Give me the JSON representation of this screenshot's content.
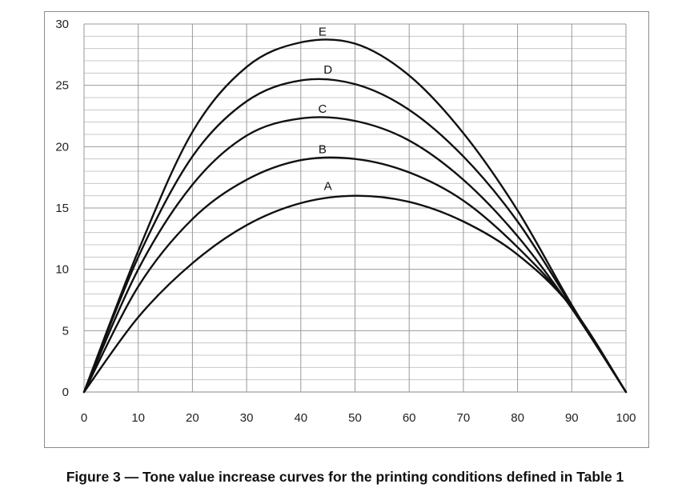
{
  "caption": "Figure 3 — Tone value increase curves for the printing conditions defined in Table 1",
  "chart_data": {
    "type": "line",
    "title": "",
    "xlabel": "",
    "ylabel": "",
    "xlim": [
      0,
      100
    ],
    "ylim": [
      0,
      30
    ],
    "x_ticks": [
      0,
      10,
      20,
      30,
      40,
      50,
      60,
      70,
      80,
      90,
      100
    ],
    "y_ticks": [
      0,
      5,
      10,
      15,
      20,
      25,
      30
    ],
    "x_minor_step": 10,
    "y_minor_step": 1,
    "grid": true,
    "legend": "none",
    "series": [
      {
        "name": "A",
        "label_at": [
          45,
          16.4
        ],
        "x": [
          0,
          10,
          20,
          30,
          40,
          50,
          60,
          70,
          80,
          90,
          100
        ],
        "y": [
          0,
          6.1,
          10.5,
          13.6,
          15.4,
          16.0,
          15.5,
          13.9,
          11.2,
          6.9,
          0
        ]
      },
      {
        "name": "B",
        "label_at": [
          44,
          19.4
        ],
        "x": [
          0,
          10,
          20,
          30,
          40,
          50,
          60,
          70,
          80,
          90,
          100
        ],
        "y": [
          0,
          8.6,
          14.1,
          17.3,
          18.9,
          19.0,
          17.9,
          15.6,
          11.8,
          6.9,
          0
        ]
      },
      {
        "name": "C",
        "label_at": [
          44,
          22.7
        ],
        "x": [
          0,
          10,
          20,
          30,
          40,
          50,
          60,
          70,
          80,
          90,
          100
        ],
        "y": [
          0,
          10.0,
          16.9,
          20.9,
          22.3,
          22.1,
          20.5,
          17.3,
          12.7,
          6.8,
          0
        ]
      },
      {
        "name": "D",
        "label_at": [
          45,
          25.9
        ],
        "x": [
          0,
          10,
          20,
          30,
          40,
          50,
          60,
          70,
          80,
          90,
          100
        ],
        "y": [
          0,
          11.0,
          19.2,
          23.7,
          25.4,
          25.1,
          23.0,
          19.2,
          13.9,
          7.0,
          0
        ]
      },
      {
        "name": "E",
        "label_at": [
          44,
          29.0
        ],
        "x": [
          0,
          10,
          20,
          30,
          40,
          50,
          60,
          70,
          80,
          90,
          100
        ],
        "y": [
          0,
          11.5,
          21.2,
          26.5,
          28.5,
          28.4,
          25.8,
          21.1,
          14.8,
          7.1,
          0
        ]
      }
    ]
  }
}
